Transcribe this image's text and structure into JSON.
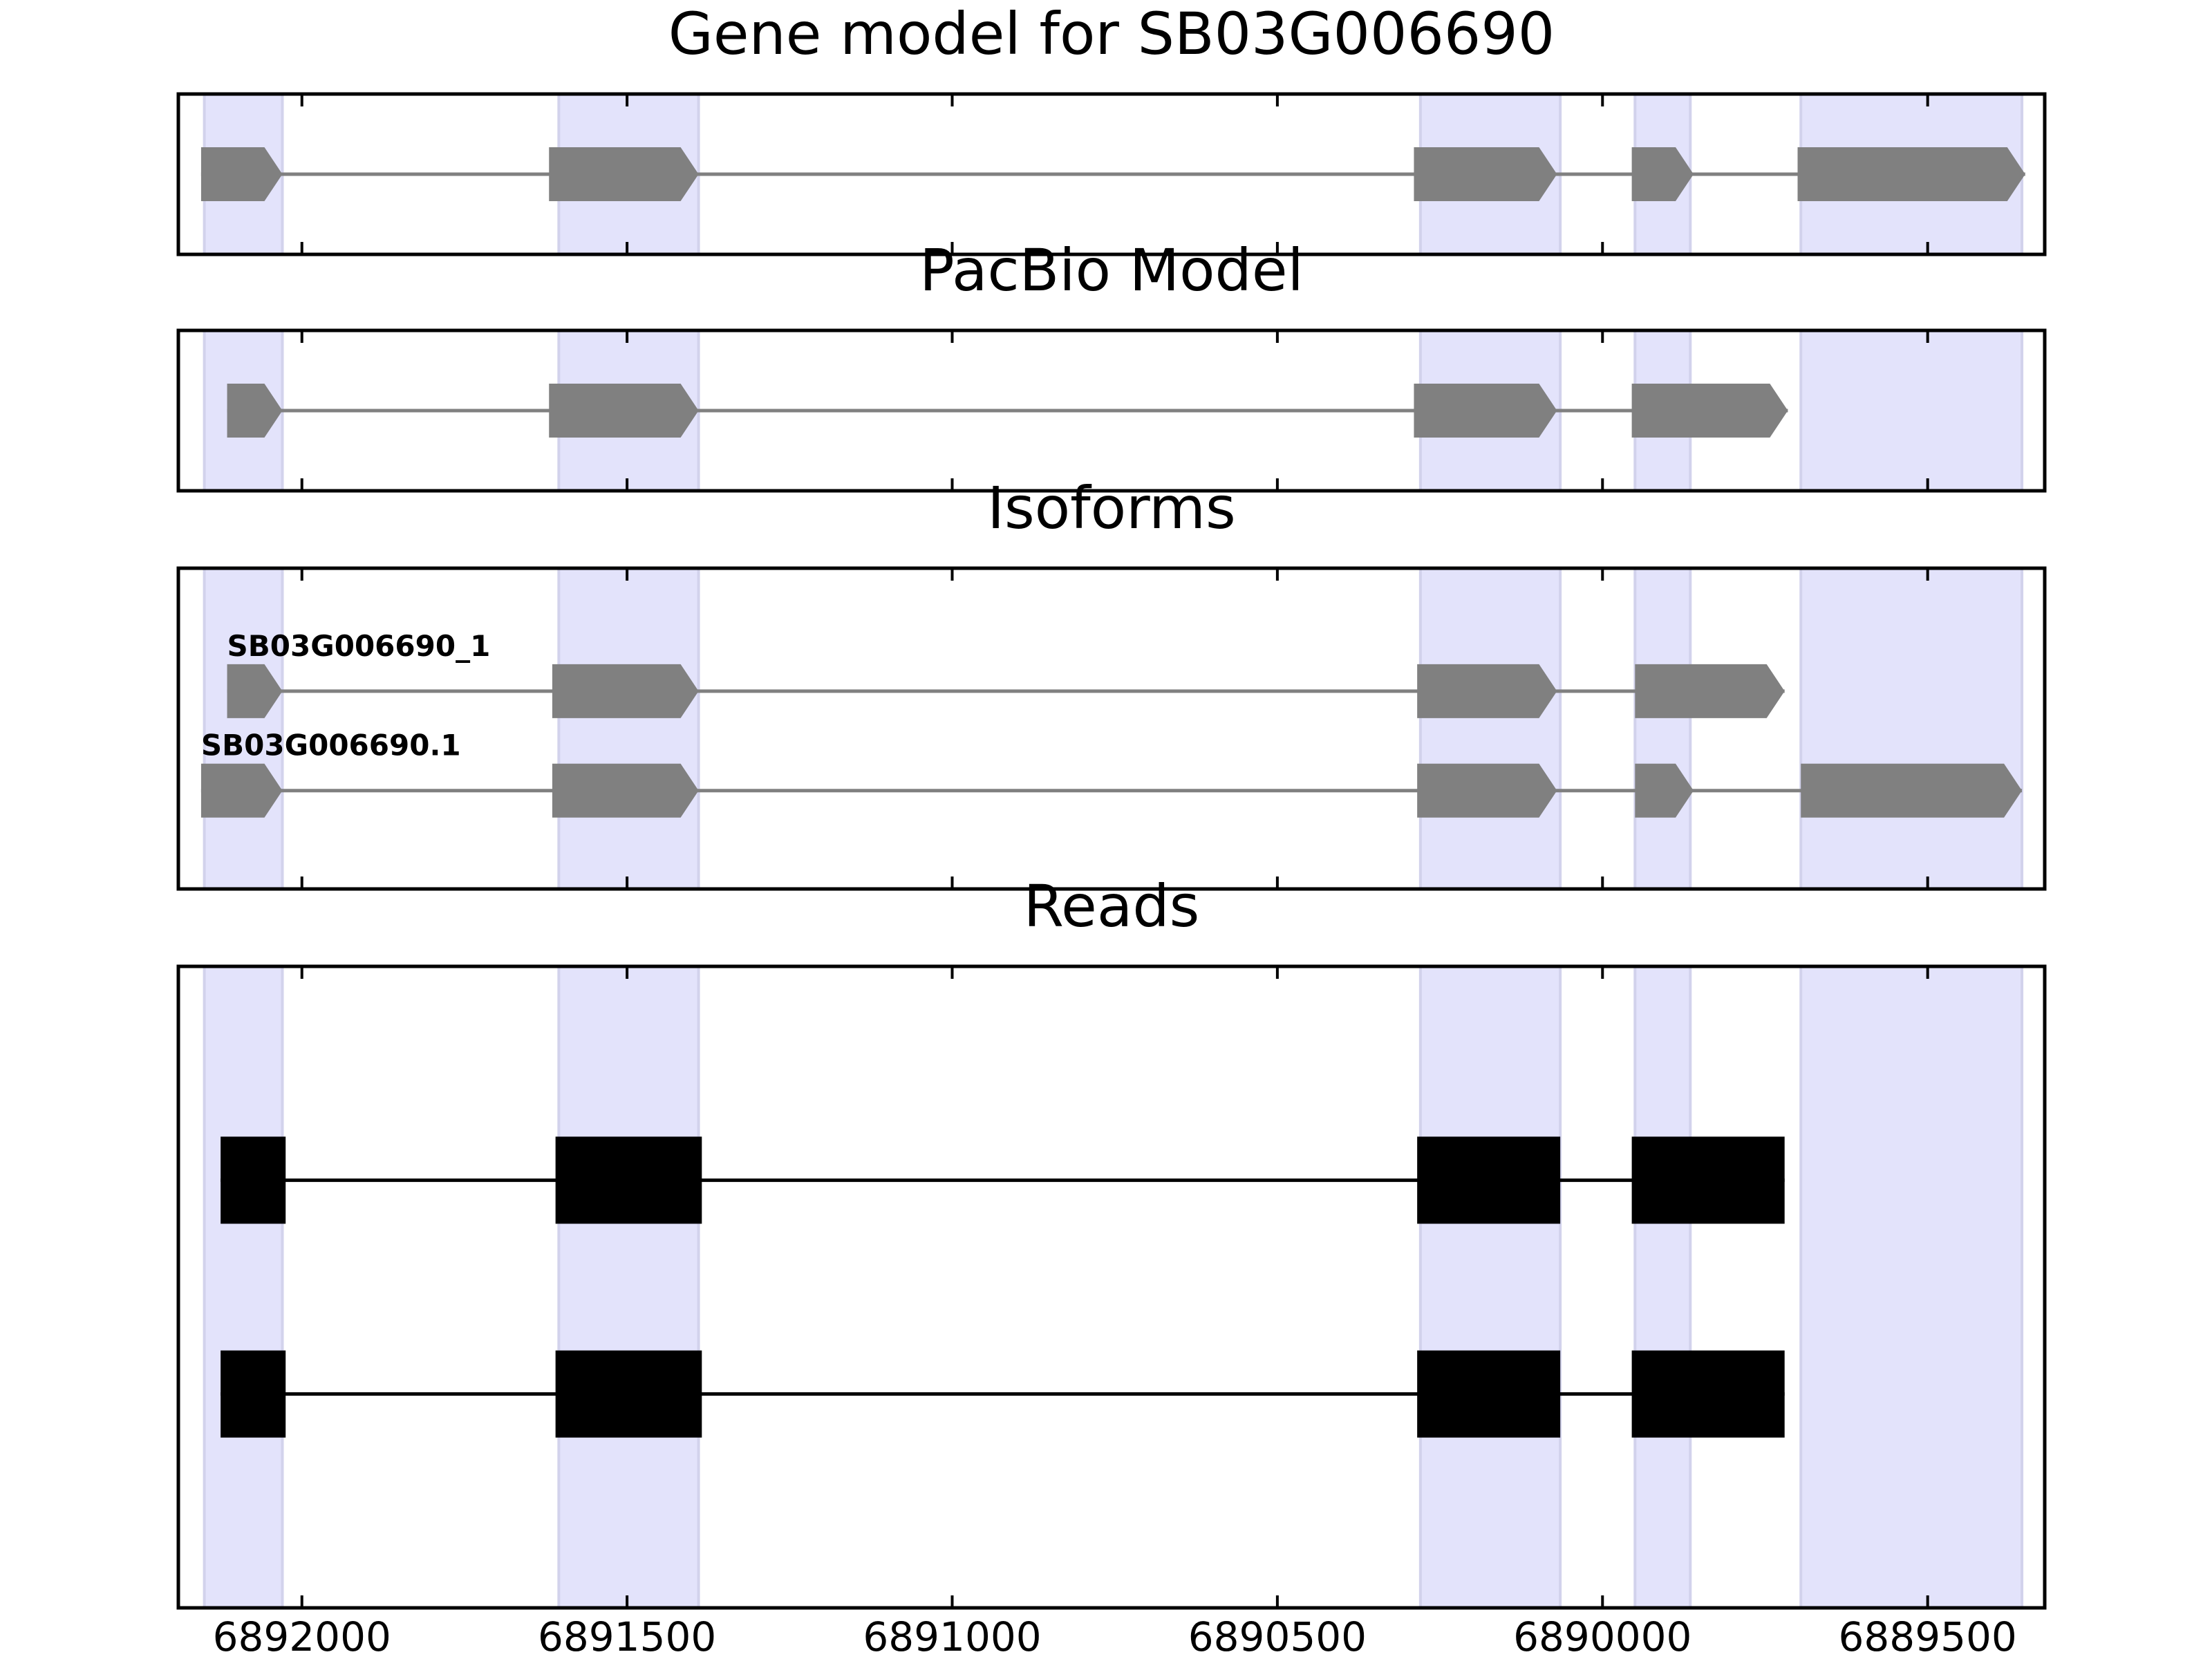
{
  "chart_data": {
    "type": "gene-model-tracks",
    "xaxis": {
      "lim": [
        6892190,
        6889320
      ],
      "reversed": true,
      "ticks": [
        6892000,
        6891500,
        6891000,
        6890500,
        6890000,
        6889500
      ],
      "tick_labels": [
        "6892000",
        "6891500",
        "6891000",
        "6890500",
        "6890000",
        "6889500"
      ]
    },
    "colors": {
      "exon_fill": "#808080",
      "intron_line": "#808080",
      "read_color": "#000000",
      "highlight": "#e3e3fb",
      "highlight_edge": "#d2d2ec",
      "frame": "#000000"
    },
    "highlight_regions": [
      [
        6892150,
        6892030
      ],
      [
        6891605,
        6891390
      ],
      [
        6890280,
        6890065
      ],
      [
        6889950,
        6889865
      ],
      [
        6889695,
        6889355
      ]
    ],
    "panels": [
      {
        "title": "Gene model for SB03G006690",
        "kind": "gene",
        "ylim": [
          0,
          1
        ],
        "tracks": [
          {
            "label": "",
            "y": 0.5,
            "exons": [
              [
                6892155,
                6892030
              ],
              [
                6891620,
                6891390
              ],
              [
                6890290,
                6890070
              ],
              [
                6889955,
                6889860
              ],
              [
                6889700,
                6889350
              ]
            ]
          }
        ]
      },
      {
        "title": "PacBio Model",
        "kind": "gene",
        "ylim": [
          0,
          1
        ],
        "tracks": [
          {
            "label": "",
            "y": 0.5,
            "exons": [
              [
                6892115,
                6892030
              ],
              [
                6891620,
                6891390
              ],
              [
                6890290,
                6890070
              ],
              [
                6889955,
                6889715
              ]
            ]
          }
        ]
      },
      {
        "title": "Isoforms",
        "kind": "gene",
        "ylim": [
          0,
          3
        ],
        "tracks": [
          {
            "label": "SB03G006690_1",
            "y": 1.85,
            "exons": [
              [
                6892115,
                6892030
              ],
              [
                6891615,
                6891390
              ],
              [
                6890285,
                6890070
              ],
              [
                6889950,
                6889720
              ]
            ]
          },
          {
            "label": "SB03G006690.1",
            "y": 0.92,
            "exons": [
              [
                6892155,
                6892030
              ],
              [
                6891615,
                6891390
              ],
              [
                6890285,
                6890070
              ],
              [
                6889950,
                6889860
              ],
              [
                6889695,
                6889355
              ]
            ]
          }
        ]
      },
      {
        "title": "Reads",
        "kind": "reads",
        "ylim": [
          0,
          3
        ],
        "tracks": [
          {
            "label": "",
            "y": 2.0,
            "exons": [
              [
                6892125,
                6892025
              ],
              [
                6891610,
                6891385
              ],
              [
                6890285,
                6890065
              ],
              [
                6889955,
                6889720
              ]
            ]
          },
          {
            "label": "",
            "y": 1.0,
            "exons": [
              [
                6892125,
                6892025
              ],
              [
                6891610,
                6891385
              ],
              [
                6890285,
                6890065
              ],
              [
                6889955,
                6889720
              ]
            ]
          }
        ]
      }
    ]
  }
}
